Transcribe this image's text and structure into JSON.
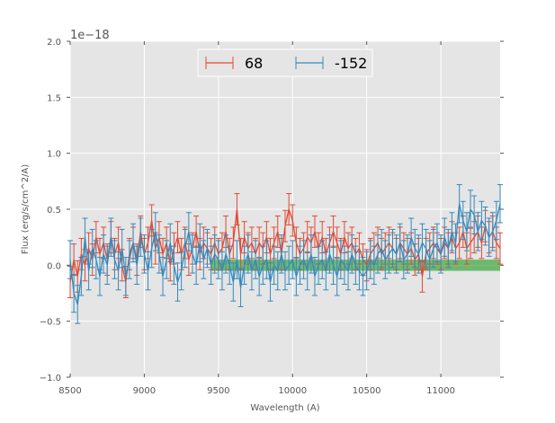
{
  "chart_data": {
    "type": "line",
    "title": "",
    "xlabel": "Wavelength (A)",
    "ylabel": "Flux (erg/s/cm^2/A)",
    "offset_label": "1e−18",
    "xlim": [
      8500,
      11400
    ],
    "ylim": [
      -1.0,
      2.0
    ],
    "x_ticks": [
      8500,
      9000,
      9500,
      10000,
      10500,
      11000
    ],
    "x_tick_labels": [
      "8500",
      "9000",
      "9500",
      "10000",
      "10500",
      "11000"
    ],
    "y_ticks": [
      -1.0,
      -0.5,
      0.0,
      0.5,
      1.0,
      1.5,
      2.0
    ],
    "y_tick_labels": [
      "−1.0",
      "−0.5",
      "0.0",
      "0.5",
      "1.0",
      "1.5",
      "2.0"
    ],
    "grid": true,
    "background": "#e5e5e5",
    "legend_position": "top-center",
    "band": {
      "x": [
        9450,
        11400
      ],
      "y": [
        -0.05,
        0.05
      ],
      "color": "#2ca02c"
    },
    "series": [
      {
        "name": "68",
        "color": "#e24a33",
        "x": [
          8500,
          8525,
          8550,
          8575,
          8600,
          8625,
          8650,
          8675,
          8700,
          8725,
          8750,
          8775,
          8800,
          8825,
          8850,
          8875,
          8900,
          8925,
          8950,
          8975,
          9000,
          9025,
          9050,
          9075,
          9100,
          9125,
          9150,
          9175,
          9200,
          9225,
          9250,
          9275,
          9300,
          9325,
          9350,
          9375,
          9400,
          9425,
          9450,
          9475,
          9500,
          9525,
          9550,
          9575,
          9600,
          9625,
          9650,
          9675,
          9700,
          9725,
          9750,
          9775,
          9800,
          9825,
          9850,
          9875,
          9900,
          9925,
          9950,
          9975,
          10000,
          10025,
          10050,
          10075,
          10100,
          10125,
          10150,
          10175,
          10200,
          10225,
          10250,
          10275,
          10300,
          10325,
          10350,
          10375,
          10400,
          10425,
          10450,
          10475,
          10500,
          10525,
          10550,
          10575,
          10600,
          10625,
          10650,
          10675,
          10700,
          10725,
          10750,
          10775,
          10800,
          10825,
          10850,
          10875,
          10900,
          10925,
          10950,
          10975,
          11000,
          11025,
          11050,
          11075,
          11100,
          11125,
          11150,
          11175,
          11200,
          11225,
          11250,
          11275,
          11300,
          11325,
          11350,
          11375,
          11400
        ],
        "y": [
          -0.15,
          0.05,
          -0.1,
          0.1,
          0.0,
          0.15,
          0.05,
          0.25,
          0.1,
          0.2,
          0.05,
          0.25,
          0.1,
          0.2,
          0.0,
          -0.15,
          0.1,
          0.2,
          0.05,
          0.3,
          0.1,
          0.2,
          0.4,
          0.15,
          0.25,
          0.1,
          0.2,
          0.0,
          0.15,
          0.25,
          0.1,
          0.2,
          0.05,
          0.15,
          0.3,
          0.1,
          0.2,
          0.15,
          0.1,
          0.2,
          0.1,
          0.15,
          0.3,
          0.1,
          0.2,
          0.5,
          0.1,
          0.25,
          0.15,
          0.2,
          0.1,
          0.2,
          0.15,
          0.25,
          0.1,
          0.2,
          0.3,
          0.1,
          0.35,
          0.5,
          0.4,
          0.2,
          0.1,
          0.15,
          0.25,
          0.2,
          0.3,
          0.15,
          0.25,
          0.1,
          0.2,
          0.3,
          0.2,
          0.1,
          0.25,
          0.15,
          0.2,
          0.1,
          0.15,
          0.05,
          0.0,
          0.1,
          0.15,
          0.2,
          0.1,
          0.15,
          0.2,
          0.15,
          0.1,
          0.2,
          0.15,
          0.1,
          0.15,
          0.05,
          0.1,
          -0.1,
          0.1,
          0.15,
          0.2,
          0.15,
          0.1,
          0.2,
          0.15,
          0.25,
          0.15,
          0.2,
          0.3,
          0.15,
          0.2,
          0.25,
          0.3,
          0.2,
          0.35,
          0.25,
          0.3,
          0.2,
          0.15
        ],
        "err": 0.14
      },
      {
        "name": "-152",
        "color": "#348abd",
        "x": [
          8500,
          8525,
          8550,
          8575,
          8600,
          8625,
          8650,
          8675,
          8700,
          8725,
          8750,
          8775,
          8800,
          8825,
          8850,
          8875,
          8900,
          8925,
          8950,
          8975,
          9000,
          9025,
          9050,
          9075,
          9100,
          9125,
          9150,
          9175,
          9200,
          9225,
          9250,
          9275,
          9300,
          9325,
          9350,
          9375,
          9400,
          9425,
          9450,
          9475,
          9500,
          9525,
          9550,
          9575,
          9600,
          9625,
          9650,
          9675,
          9700,
          9725,
          9750,
          9775,
          9800,
          9825,
          9850,
          9875,
          9900,
          9925,
          9950,
          9975,
          10000,
          10025,
          10050,
          10075,
          10100,
          10125,
          10150,
          10175,
          10200,
          10225,
          10250,
          10275,
          10300,
          10325,
          10350,
          10375,
          10400,
          10425,
          10450,
          10475,
          10500,
          10525,
          10550,
          10575,
          10600,
          10625,
          10650,
          10675,
          10700,
          10725,
          10750,
          10775,
          10800,
          10825,
          10850,
          10875,
          10900,
          10925,
          10950,
          10975,
          11000,
          11025,
          11050,
          11075,
          11100,
          11125,
          11150,
          11175,
          11200,
          11225,
          11250,
          11275,
          11300,
          11325,
          11350,
          11375,
          11400
        ],
        "y": [
          0.05,
          -0.25,
          -0.35,
          -0.1,
          0.25,
          -0.05,
          0.15,
          0.05,
          -0.1,
          0.1,
          0.0,
          0.25,
          0.05,
          -0.05,
          0.15,
          -0.1,
          0.05,
          0.2,
          0.0,
          0.25,
          0.1,
          -0.05,
          0.15,
          0.3,
          0.1,
          -0.1,
          0.05,
          0.2,
          0.0,
          -0.15,
          -0.05,
          0.15,
          0.3,
          0.1,
          0.0,
          0.2,
          0.05,
          0.15,
          0.0,
          0.1,
          0.05,
          -0.05,
          0.1,
          0.0,
          -0.15,
          0.05,
          -0.2,
          0.0,
          0.1,
          -0.05,
          0.05,
          -0.1,
          0.0,
          0.05,
          -0.15,
          0.0,
          -0.05,
          0.1,
          -0.05,
          0.0,
          0.05,
          -0.1,
          0.0,
          0.05,
          -0.05,
          0.1,
          -0.1,
          0.0,
          0.05,
          -0.05,
          0.1,
          0.0,
          -0.1,
          0.05,
          0.0,
          -0.05,
          0.1,
          0.0,
          -0.05,
          -0.1,
          -0.05,
          0.05,
          0.0,
          0.1,
          0.15,
          0.05,
          0.1,
          0.15,
          0.1,
          0.2,
          0.05,
          0.1,
          0.25,
          0.15,
          0.1,
          0.2,
          0.15,
          0.05,
          0.15,
          0.2,
          0.1,
          0.25,
          0.15,
          0.3,
          0.2,
          0.55,
          0.4,
          0.3,
          0.5,
          0.45,
          0.3,
          0.4,
          0.35,
          0.25,
          0.3,
          0.4,
          0.55
        ],
        "err": 0.17
      }
    ]
  }
}
